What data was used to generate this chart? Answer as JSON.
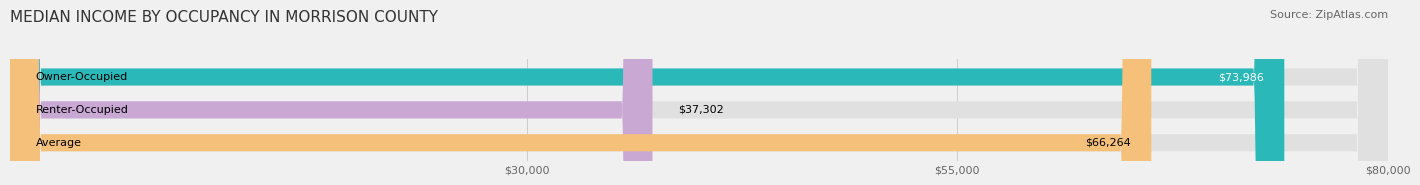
{
  "title": "MEDIAN INCOME BY OCCUPANCY IN MORRISON COUNTY",
  "source": "Source: ZipAtlas.com",
  "categories": [
    "Owner-Occupied",
    "Renter-Occupied",
    "Average"
  ],
  "values": [
    73986,
    37302,
    66264
  ],
  "bar_colors": [
    "#2ab8b8",
    "#c9a8d4",
    "#f5c07a"
  ],
  "value_labels": [
    "$73,986",
    "$37,302",
    "$66,264"
  ],
  "label_inside": [
    true,
    false,
    true
  ],
  "xlim": [
    0,
    80000
  ],
  "xticks": [
    30000,
    55000,
    80000
  ],
  "xtick_labels": [
    "$30,000",
    "$55,000",
    "$80,000"
  ],
  "title_fontsize": 11,
  "source_fontsize": 8,
  "bar_height": 0.52,
  "background_color": "#f0f0f0",
  "bar_bg_color": "#e0e0e0",
  "value_text_colors": [
    "white",
    "black",
    "black"
  ]
}
